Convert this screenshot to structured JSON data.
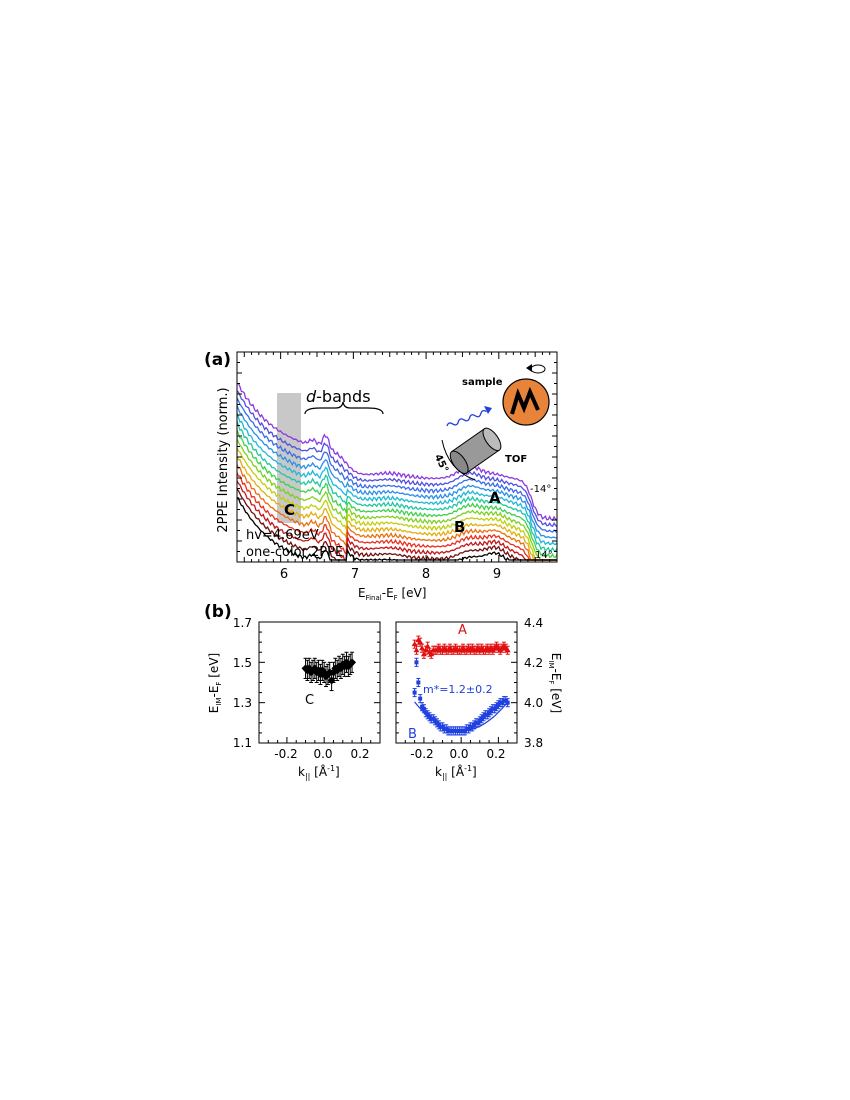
{
  "panel_labels": {
    "a": "(a)",
    "b": "(b)"
  },
  "panel_a": {
    "ylabel": "2PPE Intensity (norm.)",
    "xlabel_main": "E",
    "xlabel_sub": "Final",
    "xlabel_mid": "-E",
    "xlabel_sub2": "F",
    "xlabel_unit": " [eV]",
    "x_ticks": [
      "6",
      "7",
      "8",
      "9"
    ],
    "dbands_italic": "d",
    "dbands_rest": "-bands",
    "label_C": "C",
    "label_A": "A",
    "label_B": "B",
    "hv_text": "hv=4.69eV",
    "mode_text": "one-color 2PPE",
    "angle_top": "-14°",
    "angle_bottom": "14°",
    "inset_sample": "sample",
    "inset_tof": "TOF",
    "inset_angle": "45°"
  },
  "panel_b_left": {
    "ylabel_main": "E",
    "ylabel_sub": "IM",
    "ylabel_mid": "-E",
    "ylabel_sub2": "F",
    "ylabel_unit": " [eV]",
    "y_ticks": [
      "1.7",
      "1.5",
      "1.3",
      "1.1"
    ],
    "x_ticks": [
      "-0.2",
      "0.0",
      "0.2"
    ],
    "xlabel_main": "k",
    "xlabel_sub": "||",
    "xlabel_unit": " [Å",
    "xlabel_sup": "-1",
    "xlabel_end": "]",
    "label_C": "C"
  },
  "panel_b_right": {
    "ylabel_main": "E",
    "ylabel_sub": "IM",
    "ylabel_mid": "-E",
    "ylabel_sub2": "F",
    "ylabel_unit": " [eV]",
    "y_ticks": [
      "4.4",
      "4.2",
      "4.0",
      "3.8"
    ],
    "x_ticks": [
      "-0.2",
      "0.0",
      "0.2"
    ],
    "xlabel_main": "k",
    "xlabel_sub": "||",
    "xlabel_unit": " [Å",
    "xlabel_sup": "-1",
    "xlabel_end": "]",
    "label_A": "A",
    "label_B": "B",
    "mass_text": "m*=1.2±0.2"
  },
  "colors": {
    "red": "#e01010",
    "blue": "#2040e0",
    "gray_box": "#c8c8c8",
    "sample_fill": "#e8833a"
  },
  "chart_data": [
    {
      "type": "line",
      "panel": "a",
      "xlabel": "E_Final-E_F [eV]",
      "ylabel": "2PPE Intensity (norm.)",
      "xlim": [
        5.4,
        9.8
      ],
      "angle_range_deg": [
        -14,
        14
      ],
      "n_curves": 15,
      "curve_colors": [
        "#8a3ae0",
        "#5050e0",
        "#3a6ce8",
        "#2a90e8",
        "#20b8d8",
        "#20c8a0",
        "#40d050",
        "#80d020",
        "#c0d010",
        "#e0b010",
        "#e87010",
        "#e83020",
        "#c01818",
        "#701010",
        "#000000"
      ],
      "features": [
        {
          "label": "d-bands",
          "x_range": [
            6.2,
            7.4
          ]
        },
        {
          "label": "C",
          "x_range": [
            5.95,
            6.3
          ]
        },
        {
          "label": "A",
          "x": 9.0
        },
        {
          "label": "B",
          "x": 8.55
        }
      ]
    },
    {
      "type": "scatter",
      "panel": "b-left",
      "series": [
        {
          "name": "C",
          "x": [
            -0.1,
            -0.09,
            -0.08,
            -0.07,
            -0.06,
            -0.05,
            -0.04,
            -0.03,
            -0.02,
            -0.01,
            0.0,
            0.01,
            0.02,
            0.03,
            0.04,
            0.05,
            0.06,
            0.07,
            0.08,
            0.09,
            0.1,
            0.11,
            0.12,
            0.13,
            0.14,
            0.15
          ],
          "y": [
            1.47,
            1.46,
            1.47,
            1.45,
            1.46,
            1.47,
            1.45,
            1.46,
            1.44,
            1.46,
            1.45,
            1.43,
            1.44,
            1.45,
            1.41,
            1.45,
            1.47,
            1.46,
            1.48,
            1.47,
            1.49,
            1.48,
            1.5,
            1.48,
            1.49,
            1.5
          ],
          "err": 0.05
        }
      ],
      "xlim": [
        -0.35,
        0.3
      ],
      "ylim": [
        1.1,
        1.7
      ],
      "xlabel": "k_|| [Å^-1]",
      "ylabel": "E_IM-E_F [eV]"
    },
    {
      "type": "scatter",
      "panel": "b-right",
      "series": [
        {
          "name": "A",
          "x": [
            -0.25,
            -0.24,
            -0.23,
            -0.22,
            -0.21,
            -0.2,
            -0.19,
            -0.18,
            -0.17,
            -0.16,
            -0.15,
            -0.14,
            -0.13,
            -0.12,
            -0.11,
            -0.1,
            -0.09,
            -0.08,
            -0.07,
            -0.06,
            -0.05,
            -0.04,
            -0.03,
            -0.02,
            -0.01,
            0.0,
            0.01,
            0.02,
            0.03,
            0.04,
            0.05,
            0.06,
            0.07,
            0.08,
            0.09,
            0.1,
            0.11,
            0.12,
            0.13,
            0.14,
            0.15,
            0.16,
            0.17,
            0.18,
            0.19,
            0.2,
            0.21,
            0.22,
            0.23,
            0.24,
            0.25
          ],
          "y": [
            4.29,
            4.26,
            4.31,
            4.3,
            4.27,
            4.24,
            4.26,
            4.28,
            4.25,
            4.24,
            4.26,
            4.26,
            4.26,
            4.27,
            4.26,
            4.26,
            4.27,
            4.26,
            4.26,
            4.27,
            4.26,
            4.26,
            4.27,
            4.26,
            4.26,
            4.26,
            4.27,
            4.26,
            4.26,
            4.27,
            4.26,
            4.27,
            4.26,
            4.26,
            4.27,
            4.26,
            4.27,
            4.26,
            4.26,
            4.27,
            4.26,
            4.27,
            4.26,
            4.27,
            4.28,
            4.27,
            4.26,
            4.27,
            4.28,
            4.27,
            4.26
          ],
          "err": 0.02
        },
        {
          "name": "B",
          "x": [
            -0.25,
            -0.24,
            -0.23,
            -0.22,
            -0.21,
            -0.2,
            -0.19,
            -0.18,
            -0.17,
            -0.16,
            -0.15,
            -0.14,
            -0.13,
            -0.12,
            -0.11,
            -0.1,
            -0.09,
            -0.08,
            -0.07,
            -0.06,
            -0.05,
            -0.04,
            -0.03,
            -0.02,
            -0.01,
            0.0,
            0.01,
            0.02,
            0.03,
            0.04,
            0.05,
            0.06,
            0.07,
            0.08,
            0.09,
            0.1,
            0.11,
            0.12,
            0.13,
            0.14,
            0.15,
            0.16,
            0.17,
            0.18,
            0.19,
            0.2,
            0.21,
            0.22,
            0.23,
            0.24,
            0.25
          ],
          "y": [
            4.05,
            4.2,
            4.1,
            4.02,
            3.98,
            3.97,
            3.95,
            3.94,
            3.93,
            3.92,
            3.92,
            3.91,
            3.9,
            3.89,
            3.88,
            3.88,
            3.87,
            3.87,
            3.86,
            3.86,
            3.86,
            3.86,
            3.86,
            3.86,
            3.86,
            3.86,
            3.86,
            3.86,
            3.87,
            3.87,
            3.88,
            3.88,
            3.89,
            3.9,
            3.9,
            3.91,
            3.92,
            3.93,
            3.94,
            3.94,
            3.95,
            3.96,
            3.97,
            3.97,
            3.98,
            3.99,
            4.0,
            4.0,
            4.01,
            4.01,
            4.0
          ],
          "err": 0.02
        }
      ],
      "fit": {
        "series": "B",
        "type": "parabola",
        "label": "m*=1.2±0.2"
      },
      "xlim": [
        -0.35,
        0.3
      ],
      "ylim": [
        3.8,
        4.4
      ],
      "xlabel": "k_|| [Å^-1]",
      "ylabel": "E_IM-E_F [eV]"
    }
  ]
}
